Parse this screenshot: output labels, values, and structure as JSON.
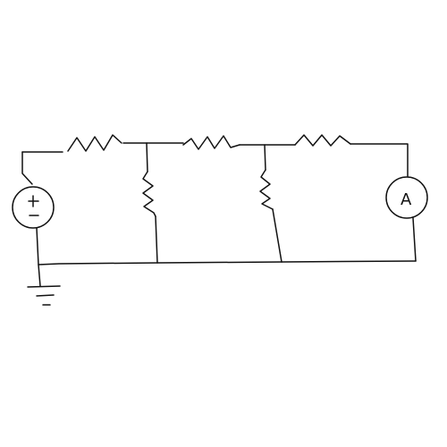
{
  "diagram": {
    "type": "circuit-sketch",
    "background": "#ffffff",
    "ink_color": "#111111",
    "components": [
      {
        "id": "voltage-source",
        "kind": "voltage source",
        "terminal_plus": "+",
        "terminal_minus": "−"
      },
      {
        "id": "resistor-top-1",
        "kind": "resistor"
      },
      {
        "id": "resistor-top-2",
        "kind": "resistor"
      },
      {
        "id": "resistor-top-3",
        "kind": "resistor"
      },
      {
        "id": "resistor-shunt-1",
        "kind": "resistor"
      },
      {
        "id": "resistor-shunt-2",
        "kind": "resistor"
      },
      {
        "id": "ammeter",
        "kind": "ammeter",
        "symbol": "A"
      },
      {
        "id": "ground",
        "kind": "ground"
      }
    ]
  }
}
